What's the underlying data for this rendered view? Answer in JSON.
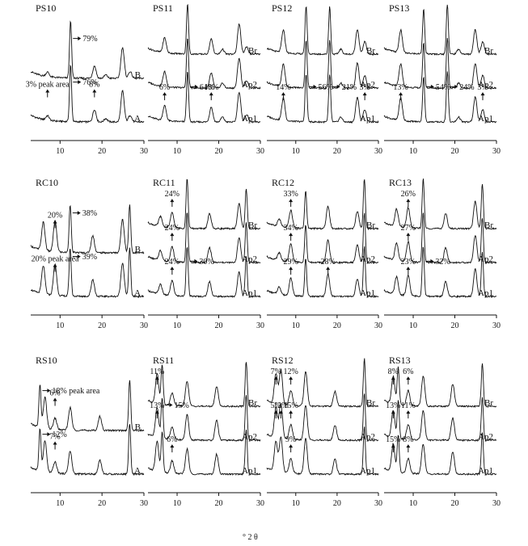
{
  "figure": {
    "x_axis_label": "° 2 θ",
    "x_ticks": [
      "10",
      "20",
      "30"
    ]
  },
  "chart_data": [
    {
      "type": "line",
      "title": "PS10",
      "xlim": [
        3,
        30
      ],
      "x_ticks": [
        10,
        20,
        30
      ],
      "series": [
        {
          "name": "A"
        },
        {
          "name": "B"
        }
      ],
      "peaks": [
        [
          7,
          0.08
        ],
        [
          12.5,
          1.0
        ],
        [
          18.2,
          0.22
        ],
        [
          20.9,
          0.06
        ],
        [
          24.9,
          0.55
        ],
        [
          26.7,
          0.12
        ]
      ],
      "annotations": [
        {
          "series": "B",
          "x": 12.5,
          "text": "79%"
        },
        {
          "series": "A",
          "x": 12.5,
          "text": "76%"
        },
        {
          "series": "A",
          "x": 18.2,
          "text": "8%"
        },
        {
          "series": "A",
          "x": 7,
          "text": "3%  peak area"
        }
      ]
    },
    {
      "type": "line",
      "title": "PS11",
      "xlim": [
        3,
        30
      ],
      "x_ticks": [
        10,
        20,
        30
      ],
      "series": [
        {
          "name": "Ap1"
        },
        {
          "name": "Ap2"
        },
        {
          "name": "Br"
        }
      ],
      "peaks": [
        [
          7,
          0.3
        ],
        [
          12.5,
          1.0
        ],
        [
          18.2,
          0.3
        ],
        [
          20.9,
          0.1
        ],
        [
          24.9,
          0.6
        ],
        [
          26.7,
          0.15
        ]
      ],
      "annotations": [
        {
          "series": "Ap1",
          "x": 7,
          "text": "6%"
        },
        {
          "series": "Ap1",
          "x": 12.5,
          "text": "64%"
        },
        {
          "series": "Ap1",
          "x": 18.2,
          "text": "18%"
        }
      ]
    },
    {
      "type": "line",
      "title": "PS12",
      "xlim": [
        3,
        30
      ],
      "x_ticks": [
        10,
        20,
        30
      ],
      "series": [
        {
          "name": "Ap1"
        },
        {
          "name": "Ap2"
        },
        {
          "name": "Br"
        }
      ],
      "peaks": [
        [
          7,
          0.45
        ],
        [
          12.5,
          0.95
        ],
        [
          18.2,
          0.95
        ],
        [
          20.9,
          0.1
        ],
        [
          24.9,
          0.5
        ],
        [
          26.7,
          0.25
        ]
      ],
      "annotations": [
        {
          "series": "Ap1",
          "x": 7,
          "text": "14%"
        },
        {
          "series": "Ap1",
          "x": 12.5,
          "text": "56%"
        },
        {
          "series": "Ap1",
          "x": 18.2,
          "text": "21%"
        },
        {
          "series": "Ap1",
          "x": 26.7,
          "text": "3%"
        }
      ]
    },
    {
      "type": "line",
      "title": "PS13",
      "xlim": [
        3,
        30
      ],
      "x_ticks": [
        10,
        20,
        30
      ],
      "series": [
        {
          "name": "Ap1"
        },
        {
          "name": "Ap2"
        },
        {
          "name": "Br"
        }
      ],
      "peaks": [
        [
          7,
          0.45
        ],
        [
          12.5,
          0.9
        ],
        [
          18.2,
          1.0
        ],
        [
          20.9,
          0.1
        ],
        [
          24.9,
          0.5
        ],
        [
          26.7,
          0.25
        ]
      ],
      "annotations": [
        {
          "series": "Ap1",
          "x": 7,
          "text": "13%"
        },
        {
          "series": "Ap1",
          "x": 12.5,
          "text": "54%"
        },
        {
          "series": "Ap1",
          "x": 18.2,
          "text": "24%"
        },
        {
          "series": "Ap1",
          "x": 26.7,
          "text": "3%"
        }
      ]
    },
    {
      "type": "line",
      "title": "RC10",
      "xlim": [
        3,
        30
      ],
      "x_ticks": [
        10,
        20,
        30
      ],
      "series": [
        {
          "name": "A"
        },
        {
          "name": "B"
        }
      ],
      "peaks": [
        [
          6,
          0.5
        ],
        [
          8.8,
          0.55
        ],
        [
          12.4,
          0.85
        ],
        [
          17.8,
          0.3
        ],
        [
          24.9,
          0.6
        ],
        [
          26.6,
          0.85
        ]
      ],
      "annotations": [
        {
          "series": "B",
          "x": 8.8,
          "text": "20%"
        },
        {
          "series": "B",
          "x": 12.4,
          "text": "38%"
        },
        {
          "series": "A",
          "x": 8.8,
          "text": "20%  peak area"
        },
        {
          "series": "A",
          "x": 12.4,
          "text": "39%"
        }
      ]
    },
    {
      "type": "line",
      "title": "RC11",
      "xlim": [
        3,
        30
      ],
      "x_ticks": [
        10,
        20,
        30
      ],
      "series": [
        {
          "name": "Ap1"
        },
        {
          "name": "Ap2"
        },
        {
          "name": "Br"
        }
      ],
      "peaks": [
        [
          6,
          0.2
        ],
        [
          8.8,
          0.3
        ],
        [
          12.4,
          1.0
        ],
        [
          17.8,
          0.3
        ],
        [
          24.9,
          0.5
        ],
        [
          26.6,
          0.8
        ]
      ],
      "annotations": [
        {
          "series": "Br",
          "x": 8.8,
          "text": "24%"
        },
        {
          "series": "Ap2",
          "x": 8.8,
          "text": "24%"
        },
        {
          "series": "Ap1",
          "x": 8.8,
          "text": "24%"
        },
        {
          "series": "Ap1",
          "x": 12.4,
          "text": "30%"
        }
      ]
    },
    {
      "type": "line",
      "title": "RC12",
      "xlim": [
        3,
        30
      ],
      "x_ticks": [
        10,
        20,
        30
      ],
      "series": [
        {
          "name": "Ap1"
        },
        {
          "name": "Ap2"
        },
        {
          "name": "Br"
        }
      ],
      "peaks": [
        [
          6,
          0.15
        ],
        [
          8.8,
          0.35
        ],
        [
          12.4,
          0.75
        ],
        [
          17.8,
          0.45
        ],
        [
          24.9,
          0.35
        ],
        [
          26.6,
          1.0
        ]
      ],
      "annotations": [
        {
          "series": "Br",
          "x": 8.8,
          "text": "33%"
        },
        {
          "series": "Ap2",
          "x": 8.8,
          "text": "34%"
        },
        {
          "series": "Ap1",
          "x": 8.8,
          "text": "29%"
        },
        {
          "series": "Ap1",
          "x": 17.8,
          "text": "28%"
        }
      ]
    },
    {
      "type": "line",
      "title": "RC13",
      "xlim": [
        3,
        30
      ],
      "x_ticks": [
        10,
        20,
        30
      ],
      "series": [
        {
          "name": "Ap1"
        },
        {
          "name": "Ap2"
        },
        {
          "name": "Br"
        }
      ],
      "peaks": [
        [
          6,
          0.35
        ],
        [
          8.8,
          0.4
        ],
        [
          12.4,
          1.0
        ],
        [
          17.8,
          0.3
        ],
        [
          24.9,
          0.55
        ],
        [
          26.6,
          0.9
        ]
      ],
      "annotations": [
        {
          "series": "Br",
          "x": 8.8,
          "text": "26%"
        },
        {
          "series": "Ap2",
          "x": 8.8,
          "text": "27%"
        },
        {
          "series": "Ap1",
          "x": 8.8,
          "text": "23%"
        },
        {
          "series": "Ap1",
          "x": 12.4,
          "text": "32%"
        }
      ]
    },
    {
      "type": "line",
      "title": "RS10",
      "xlim": [
        3,
        30
      ],
      "x_ticks": [
        10,
        20,
        30
      ],
      "series": [
        {
          "name": "A"
        },
        {
          "name": "B"
        }
      ],
      "peaks": [
        [
          5.2,
          0.75
        ],
        [
          6.4,
          0.55
        ],
        [
          8.8,
          0.2
        ],
        [
          12.4,
          0.4
        ],
        [
          19.5,
          0.25
        ],
        [
          26.6,
          0.9
        ]
      ],
      "annotations": [
        {
          "series": "B",
          "x": 5.2,
          "text": "18%  peak area"
        },
        {
          "series": "B",
          "x": 8.8,
          "text": "6%"
        },
        {
          "series": "A",
          "x": 5.2,
          "text": "12%"
        },
        {
          "series": "A",
          "x": 8.8,
          "text": "7%"
        }
      ]
    },
    {
      "type": "line",
      "title": "RS11",
      "xlim": [
        3,
        30
      ],
      "x_ticks": [
        10,
        20,
        30
      ],
      "series": [
        {
          "name": "Ap1"
        },
        {
          "name": "Ap2"
        },
        {
          "name": "Br"
        }
      ],
      "peaks": [
        [
          5.2,
          0.6
        ],
        [
          6.4,
          0.8
        ],
        [
          8.8,
          0.25
        ],
        [
          12.4,
          0.5
        ],
        [
          19.5,
          0.4
        ],
        [
          26.6,
          0.9
        ]
      ],
      "annotations": [
        {
          "series": "Br",
          "x": 5.2,
          "text": "11%"
        },
        {
          "series": "Ap2",
          "x": 5.2,
          "text": "13%"
        },
        {
          "series": "Ap2",
          "x": 6.4,
          "text": "15%"
        },
        {
          "series": "Ap1",
          "x": 8.8,
          "text": "6%"
        }
      ]
    },
    {
      "type": "line",
      "title": "RS12",
      "xlim": [
        3,
        30
      ],
      "x_ticks": [
        10,
        20,
        30
      ],
      "series": [
        {
          "name": "Ap1"
        },
        {
          "name": "Ap2"
        },
        {
          "name": "Br"
        }
      ],
      "peaks": [
        [
          5.2,
          0.6
        ],
        [
          6.4,
          0.7
        ],
        [
          8.8,
          0.3
        ],
        [
          12.4,
          0.7
        ],
        [
          19.5,
          0.3
        ],
        [
          26.6,
          0.95
        ]
      ],
      "annotations": [
        {
          "series": "Br",
          "x": 5.2,
          "text": "7%"
        },
        {
          "series": "Br",
          "x": 8.8,
          "text": "12%"
        },
        {
          "series": "Ap2",
          "x": 5.2,
          "text": "5%"
        },
        {
          "series": "Ap2",
          "x": 6.4,
          "text": "12%"
        },
        {
          "series": "Ap2",
          "x": 8.8,
          "text": "15%"
        },
        {
          "series": "Ap1",
          "x": 8.8,
          "text": "9%"
        }
      ]
    },
    {
      "type": "line",
      "title": "RS13",
      "xlim": [
        3,
        30
      ],
      "x_ticks": [
        10,
        20,
        30
      ],
      "series": [
        {
          "name": "Ap1"
        },
        {
          "name": "Ap2"
        },
        {
          "name": "Br"
        }
      ],
      "peaks": [
        [
          5.2,
          0.55
        ],
        [
          6.4,
          0.75
        ],
        [
          8.8,
          0.3
        ],
        [
          12.4,
          0.6
        ],
        [
          19.5,
          0.45
        ],
        [
          26.6,
          0.85
        ]
      ],
      "annotations": [
        {
          "series": "Br",
          "x": 5.2,
          "text": "8%"
        },
        {
          "series": "Br",
          "x": 8.8,
          "text": "6%"
        },
        {
          "series": "Ap2",
          "x": 5.2,
          "text": "13%"
        },
        {
          "series": "Ap2",
          "x": 8.8,
          "text": "11%"
        },
        {
          "series": "Ap1",
          "x": 5.2,
          "text": "15%"
        },
        {
          "series": "Ap1",
          "x": 8.8,
          "text": "8%"
        }
      ]
    }
  ]
}
